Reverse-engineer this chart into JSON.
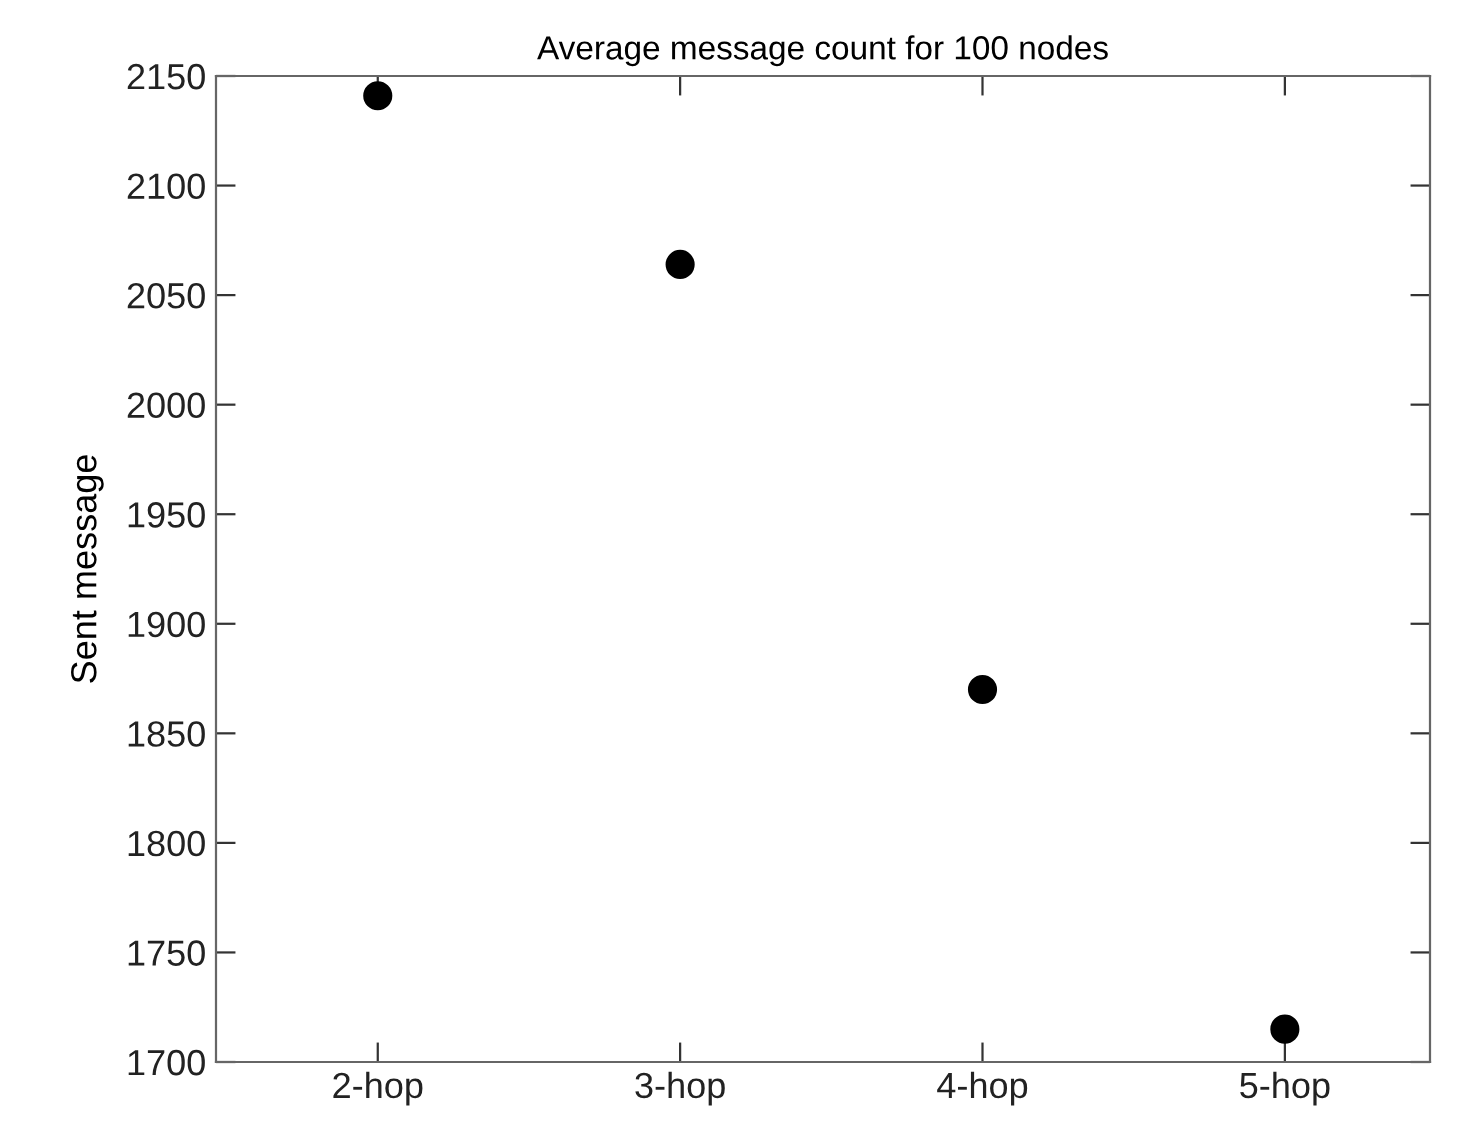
{
  "chart_data": {
    "type": "scatter",
    "title": "Average message count for 100 nodes",
    "ylabel": "Sent message",
    "categories": [
      "2-hop",
      "3-hop",
      "4-hop",
      "5-hop"
    ],
    "series": [
      {
        "color": "#000000",
        "values": [
          2141,
          2064,
          1870,
          1715
        ]
      }
    ],
    "ylim": [
      1700,
      2150
    ],
    "yticks": [
      1700,
      1750,
      1800,
      1850,
      1900,
      1950,
      2000,
      2050,
      2100,
      2150
    ],
    "marker": "circle",
    "grid": false,
    "legend": false
  }
}
